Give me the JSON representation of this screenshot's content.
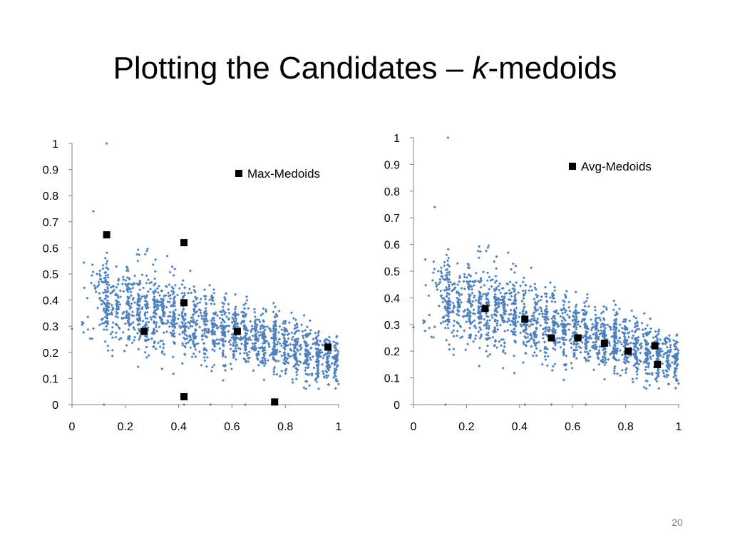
{
  "slide": {
    "title_prefix": "Plotting the Candidates – ",
    "title_italic": "k",
    "title_suffix": "-medoids",
    "page_number": "20"
  },
  "colors": {
    "points": "#4f81bd",
    "medoids": "#000000",
    "axis": "#808080"
  },
  "chart_data": [
    {
      "type": "scatter",
      "title": "",
      "xlabel": "",
      "ylabel": "",
      "xlim": [
        0,
        1
      ],
      "ylim": [
        0,
        1
      ],
      "x_ticks": [
        "0",
        "0.2",
        "0.4",
        "0.6",
        "0.8",
        "1"
      ],
      "y_ticks": [
        "0",
        "0.1",
        "0.2",
        "0.3",
        "0.4",
        "0.5",
        "0.6",
        "0.7",
        "0.8",
        "0.9",
        "1"
      ],
      "grid": false,
      "legend": {
        "position": "top-right",
        "entries": [
          "Max-Medoids"
        ]
      },
      "background_points": {
        "description_kind": "dense candidate cloud",
        "outliers": [
          [
            0.13,
            1.0
          ],
          [
            0.08,
            0.74
          ],
          [
            0.12,
            0.0
          ],
          [
            0.42,
            0.0
          ],
          [
            0.52,
            0.0
          ],
          [
            0.65,
            0.0
          ],
          [
            0.0,
            0.29
          ]
        ]
      },
      "series": [
        {
          "name": "Max-Medoids",
          "marker": "square",
          "points": [
            [
              0.13,
              0.65
            ],
            [
              0.42,
              0.62
            ],
            [
              0.42,
              0.39
            ],
            [
              0.27,
              0.28
            ],
            [
              0.62,
              0.28
            ],
            [
              0.96,
              0.22
            ],
            [
              0.42,
              0.03
            ],
            [
              0.76,
              0.01
            ]
          ]
        }
      ]
    },
    {
      "type": "scatter",
      "title": "",
      "xlabel": "",
      "ylabel": "",
      "xlim": [
        0,
        1
      ],
      "ylim": [
        0,
        1
      ],
      "x_ticks": [
        "0",
        "0.2",
        "0.4",
        "0.6",
        "0.8",
        "1"
      ],
      "y_ticks": [
        "0",
        "0.1",
        "0.2",
        "0.3",
        "0.4",
        "0.5",
        "0.6",
        "0.7",
        "0.8",
        "0.9",
        "1"
      ],
      "grid": false,
      "legend": {
        "position": "top-right",
        "entries": [
          "Avg-Medoids"
        ]
      },
      "background_points": {
        "description_kind": "dense candidate cloud",
        "outliers": [
          [
            0.13,
            1.0
          ],
          [
            0.08,
            0.74
          ],
          [
            0.12,
            0.0
          ],
          [
            0.42,
            0.0
          ],
          [
            0.52,
            0.0
          ],
          [
            0.65,
            0.0
          ],
          [
            0.0,
            0.29
          ]
        ]
      },
      "series": [
        {
          "name": "Avg-Medoids",
          "marker": "square",
          "points": [
            [
              0.27,
              0.36
            ],
            [
              0.42,
              0.32
            ],
            [
              0.52,
              0.25
            ],
            [
              0.62,
              0.25
            ],
            [
              0.72,
              0.23
            ],
            [
              0.81,
              0.2
            ],
            [
              0.91,
              0.22
            ],
            [
              0.92,
              0.15
            ]
          ]
        }
      ]
    }
  ]
}
